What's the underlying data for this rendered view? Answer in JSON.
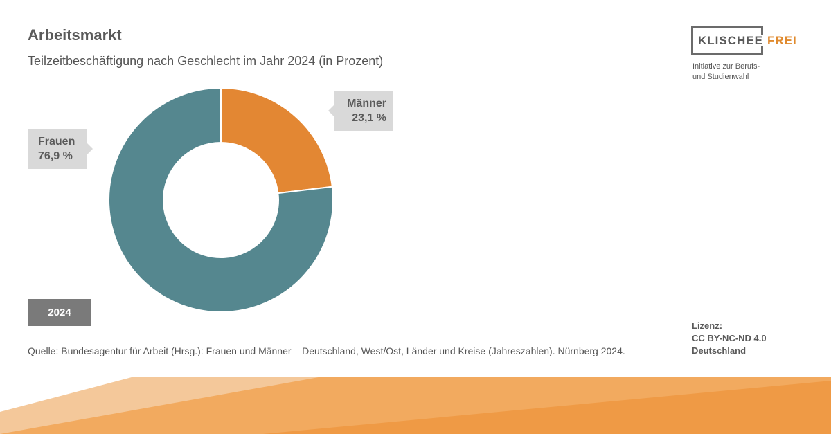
{
  "header": {
    "title": "Arbeitsmarkt",
    "subtitle": "Teilzeitbeschäftigung nach Geschlecht im Jahr 2024 (in Prozent)"
  },
  "logo": {
    "word1": "KLISCHEE",
    "word2": "FREI",
    "tagline_line1": "Initiative zur Berufs-",
    "tagline_line2": "und Studienwahl"
  },
  "chart_data": {
    "type": "pie",
    "title": "Teilzeitbeschäftigung nach Geschlecht im Jahr 2024 (in Prozent)",
    "donut": true,
    "slices": [
      {
        "name": "Männer",
        "value": 23.1,
        "label": "23,1 %",
        "color": "#e38733"
      },
      {
        "name": "Frauen",
        "value": 76.9,
        "label": "76,9 %",
        "color": "#55878f"
      }
    ],
    "year_label": "2024"
  },
  "footer": {
    "source": "Quelle: Bundesagentur für Arbeit (Hrsg.): Frauen und Männer – Deutschland, West/Ost, Länder und Kreise (Jahreszahlen). Nürnberg 2024.",
    "license_line1": "Lizenz:",
    "license_line2": "CC BY-NC-ND 4.0",
    "license_line3": "Deutschland"
  },
  "colors": {
    "accent_orange": "#e38733",
    "teal": "#55878f",
    "label_bg": "#d9d9d9",
    "badge_bg": "#7a7a7a"
  }
}
